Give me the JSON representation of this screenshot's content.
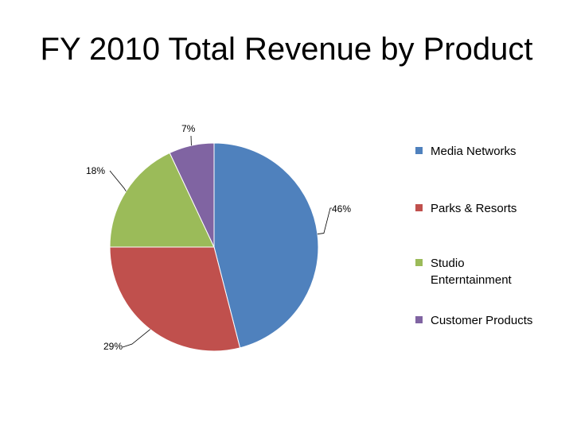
{
  "chart_data": {
    "type": "pie",
    "title": "FY 2010 Total Revenue by Product",
    "slices": [
      {
        "label": "Media Networks",
        "value": 46,
        "display": "46%",
        "color": "#4F81BD"
      },
      {
        "label": "Parks & Resorts",
        "value": 29,
        "display": "29%",
        "color": "#C0504D"
      },
      {
        "label": "Studio Enterntainment",
        "value": 18,
        "display": "18%",
        "color": "#9BBB59"
      },
      {
        "label": "Customer Products",
        "value": 7,
        "display": "7%",
        "color": "#8064A2"
      }
    ],
    "legend_position": "right"
  }
}
